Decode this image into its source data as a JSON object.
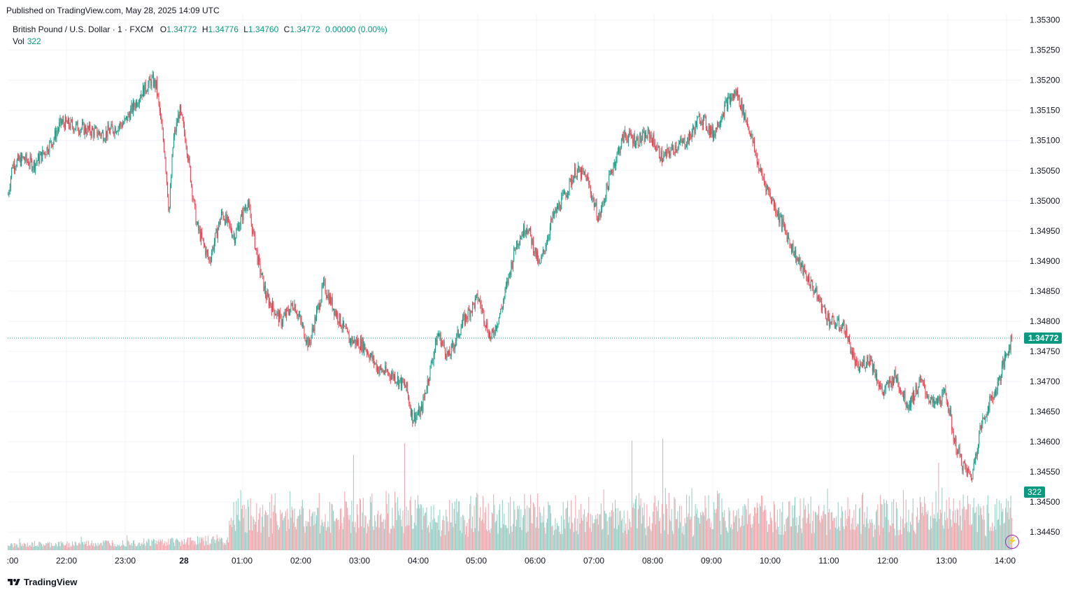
{
  "header": {
    "published": "Published on TradingView.com, May 28, 2025 14:09 UTC"
  },
  "legend": {
    "symbol": "British Pound / U.S. Dollar · 1 · FXCM",
    "o_label": "O",
    "o_value": "1.34772",
    "h_label": "H",
    "h_value": "1.34776",
    "l_label": "L",
    "l_value": "1.34760",
    "c_label": "C",
    "c_value": "1.34772",
    "change": "0.00000 (0.00%)",
    "vol_label": "Vol",
    "vol_value": "322"
  },
  "price_tag": "1.34772",
  "volume_tag": "322",
  "footer": {
    "brand": "TradingView"
  },
  "colors": {
    "up": "#089981",
    "down": "#f23645",
    "up_volume": "#8fcfc4",
    "down_volume": "#f5a3aa",
    "grid": "#f0f3fa",
    "text": "#131722",
    "bolt": "#9c27b0"
  },
  "icons": {
    "bolt": "lightning-bolt-icon",
    "logo": "tradingview-logo-icon"
  },
  "chart_data": {
    "type": "candlestick",
    "y_axis": {
      "ticks": [
        "1.35300",
        "1.35250",
        "1.35200",
        "1.35150",
        "1.35100",
        "1.35050",
        "1.35000",
        "1.34950",
        "1.34900",
        "1.34850",
        "1.34800",
        "1.34750",
        "1.34700",
        "1.34650",
        "1.34600",
        "1.34550",
        "1.34500",
        "1.34450"
      ],
      "range": [
        1.3442,
        1.3531
      ]
    },
    "x_axis": {
      "ticks": [
        ":00",
        "22:00",
        "23:00",
        "28",
        "01:00",
        "02:00",
        "03:00",
        "04:00",
        "05:00",
        "06:00",
        "07:00",
        "08:00",
        "09:00",
        "10:00",
        "11:00",
        "12:00",
        "13:00",
        "14:00"
      ],
      "range_minutes": [
        -65,
        14
      ]
    },
    "last_price": 1.34772,
    "last_volume": 322,
    "anchors": [
      {
        "t": -65,
        "p": 1.3501
      },
      {
        "t": -63,
        "p": 1.3506
      },
      {
        "t": -58,
        "p": 1.3507
      },
      {
        "t": -53,
        "p": 1.3506
      },
      {
        "t": -48,
        "p": 1.3508
      },
      {
        "t": -44,
        "p": 1.351
      },
      {
        "t": -40,
        "p": 1.3513
      },
      {
        "t": -30,
        "p": 1.3512
      },
      {
        "t": -20,
        "p": 1.3511
      },
      {
        "t": -10,
        "p": 1.3513
      },
      {
        "t": -2,
        "p": 1.3518
      },
      {
        "t": 3,
        "p": 1.352
      },
      {
        "t": 5,
        "p": 1.3519
      },
      {
        "t": 9,
        "p": 1.3508
      },
      {
        "t": 11,
        "p": 1.3498
      },
      {
        "t": 13,
        "p": 1.351
      },
      {
        "t": 16,
        "p": 1.3515
      },
      {
        "t": 19,
        "p": 1.351
      },
      {
        "t": 24,
        "p": 1.3496
      },
      {
        "t": 30,
        "p": 1.349
      },
      {
        "t": 36,
        "p": 1.3498
      },
      {
        "t": 42,
        "p": 1.3494
      },
      {
        "t": 48,
        "p": 1.35
      },
      {
        "t": 53,
        "p": 1.349
      },
      {
        "t": 57,
        "p": 1.3484
      },
      {
        "t": 64,
        "p": 1.348
      },
      {
        "t": 70,
        "p": 1.3483
      },
      {
        "t": 77,
        "p": 1.3476
      },
      {
        "t": 84,
        "p": 1.3486
      },
      {
        "t": 89,
        "p": 1.3482
      },
      {
        "t": 96,
        "p": 1.3477
      },
      {
        "t": 103,
        "p": 1.3476
      },
      {
        "t": 110,
        "p": 1.3472
      },
      {
        "t": 117,
        "p": 1.3471
      },
      {
        "t": 123,
        "p": 1.3469
      },
      {
        "t": 126,
        "p": 1.3464
      },
      {
        "t": 130,
        "p": 1.3465
      },
      {
        "t": 138,
        "p": 1.3478
      },
      {
        "t": 143,
        "p": 1.3474
      },
      {
        "t": 150,
        "p": 1.348
      },
      {
        "t": 157,
        "p": 1.3484
      },
      {
        "t": 163,
        "p": 1.3477
      },
      {
        "t": 168,
        "p": 1.3482
      },
      {
        "t": 175,
        "p": 1.3493
      },
      {
        "t": 180,
        "p": 1.3496
      },
      {
        "t": 186,
        "p": 1.3489
      },
      {
        "t": 192,
        "p": 1.3497
      },
      {
        "t": 198,
        "p": 1.3501
      },
      {
        "t": 203,
        "p": 1.3505
      },
      {
        "t": 208,
        "p": 1.3504
      },
      {
        "t": 214,
        "p": 1.3497
      },
      {
        "t": 220,
        "p": 1.3505
      },
      {
        "t": 226,
        "p": 1.3511
      },
      {
        "t": 232,
        "p": 1.351
      },
      {
        "t": 238,
        "p": 1.3511
      },
      {
        "t": 244,
        "p": 1.3507
      },
      {
        "t": 250,
        "p": 1.3509
      },
      {
        "t": 256,
        "p": 1.351
      },
      {
        "t": 262,
        "p": 1.3514
      },
      {
        "t": 268,
        "p": 1.3511
      },
      {
        "t": 274,
        "p": 1.3516
      },
      {
        "t": 279,
        "p": 1.3518
      },
      {
        "t": 285,
        "p": 1.3512
      },
      {
        "t": 290,
        "p": 1.3505
      },
      {
        "t": 296,
        "p": 1.35
      },
      {
        "t": 302,
        "p": 1.3495
      },
      {
        "t": 308,
        "p": 1.349
      },
      {
        "t": 316,
        "p": 1.3485
      },
      {
        "t": 323,
        "p": 1.348
      },
      {
        "t": 330,
        "p": 1.3479
      },
      {
        "t": 336,
        "p": 1.3472
      },
      {
        "t": 342,
        "p": 1.3474
      },
      {
        "t": 348,
        "p": 1.3468
      },
      {
        "t": 354,
        "p": 1.3471
      },
      {
        "t": 360,
        "p": 1.3466
      },
      {
        "t": 366,
        "p": 1.347
      },
      {
        "t": 372,
        "p": 1.3466
      },
      {
        "t": 378,
        "p": 1.3468
      },
      {
        "t": 382,
        "p": 1.346
      },
      {
        "t": 386,
        "p": 1.3456
      },
      {
        "t": 390,
        "p": 1.3454
      },
      {
        "t": 394,
        "p": 1.3462
      },
      {
        "t": 398,
        "p": 1.3466
      },
      {
        "t": 402,
        "p": 1.3469
      },
      {
        "t": 406,
        "p": 1.3474
      },
      {
        "t": 409,
        "p": 1.34772
      }
    ]
  }
}
